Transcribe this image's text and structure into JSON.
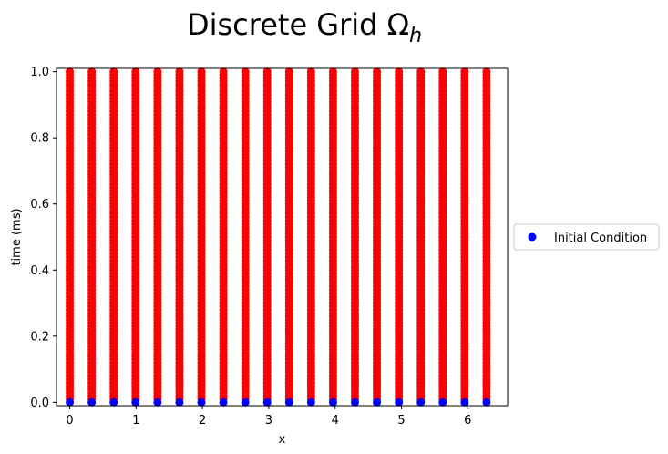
{
  "chart_data": {
    "type": "scatter",
    "title": "Discrete Grid Ω",
    "title_subscript": "h",
    "xlabel": "x",
    "ylabel": "time (ms)",
    "xlim": [
      -0.2,
      6.6
    ],
    "ylim": [
      -0.01,
      1.01
    ],
    "x_ticks": [
      0,
      1,
      2,
      3,
      4,
      5,
      6
    ],
    "y_ticks": [
      0.0,
      0.2,
      0.4,
      0.6,
      0.8,
      1.0
    ],
    "grid": false,
    "legend": {
      "placement": "right, outside plot area",
      "entries": [
        "Initial Condition"
      ]
    },
    "series": [
      {
        "role": "interior grid points",
        "color": "#ff0000",
        "marker": "circle",
        "x": [
          0,
          0.3307,
          0.6614,
          0.9921,
          1.3228,
          1.6535,
          1.9842,
          2.3149,
          2.6456,
          2.9763,
          3.3069,
          3.6376,
          3.9683,
          4.299,
          4.6297,
          4.9604,
          5.2911,
          5.6218,
          5.9525,
          6.2832
        ],
        "t_start": 0.0,
        "t_end": 1.0,
        "t_step": 0.01
      },
      {
        "name": "Initial Condition",
        "color": "#0000ff",
        "marker": "circle",
        "x": [
          0,
          0.3307,
          0.6614,
          0.9921,
          1.3228,
          1.6535,
          1.9842,
          2.3149,
          2.6456,
          2.9763,
          3.3069,
          3.6376,
          3.9683,
          4.299,
          4.6297,
          4.9604,
          5.2911,
          5.6218,
          5.9525,
          6.2832
        ],
        "y": [
          0,
          0,
          0,
          0,
          0,
          0,
          0,
          0,
          0,
          0,
          0,
          0,
          0,
          0,
          0,
          0,
          0,
          0,
          0,
          0
        ]
      }
    ]
  }
}
